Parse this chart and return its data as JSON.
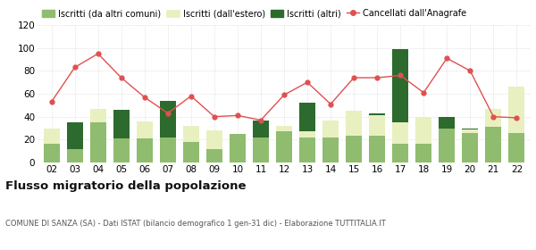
{
  "years": [
    "02",
    "03",
    "04",
    "05",
    "06",
    "07",
    "08",
    "09",
    "10",
    "11",
    "12",
    "13",
    "14",
    "15",
    "16",
    "17",
    "18",
    "19",
    "20",
    "21",
    "22"
  ],
  "iscritti_altri_comuni": [
    16,
    12,
    35,
    21,
    21,
    22,
    18,
    12,
    25,
    22,
    27,
    22,
    22,
    23,
    23,
    16,
    16,
    30,
    26,
    31,
    26
  ],
  "iscritti_estero": [
    14,
    0,
    12,
    0,
    15,
    0,
    14,
    16,
    0,
    0,
    5,
    5,
    15,
    22,
    18,
    19,
    24,
    0,
    3,
    16,
    40
  ],
  "iscritti_altri": [
    0,
    23,
    0,
    25,
    0,
    32,
    0,
    0,
    0,
    15,
    0,
    25,
    0,
    0,
    2,
    64,
    0,
    10,
    1,
    0,
    0
  ],
  "cancellati": [
    53,
    83,
    95,
    74,
    57,
    43,
    58,
    40,
    41,
    37,
    59,
    70,
    51,
    74,
    74,
    76,
    61,
    91,
    80,
    40,
    39
  ],
  "color_altri_comuni": "#8fbc6e",
  "color_estero": "#e8f0c0",
  "color_altri": "#2d6a2d",
  "color_cancellati": "#e05050",
  "title": "Flusso migratorio della popolazione",
  "subtitle": "COMUNE DI SANZA (SA) - Dati ISTAT (bilancio demografico 1 gen-31 dic) - Elaborazione TUTTITALIA.IT",
  "legend_labels": [
    "Iscritti (da altri comuni)",
    "Iscritti (dall'estero)",
    "Iscritti (altri)",
    "Cancellati dall'Anagrafe"
  ],
  "ylim": [
    0,
    120
  ],
  "yticks": [
    0,
    20,
    40,
    60,
    80,
    100,
    120
  ],
  "background": "#ffffff",
  "grid_color": "#cccccc"
}
